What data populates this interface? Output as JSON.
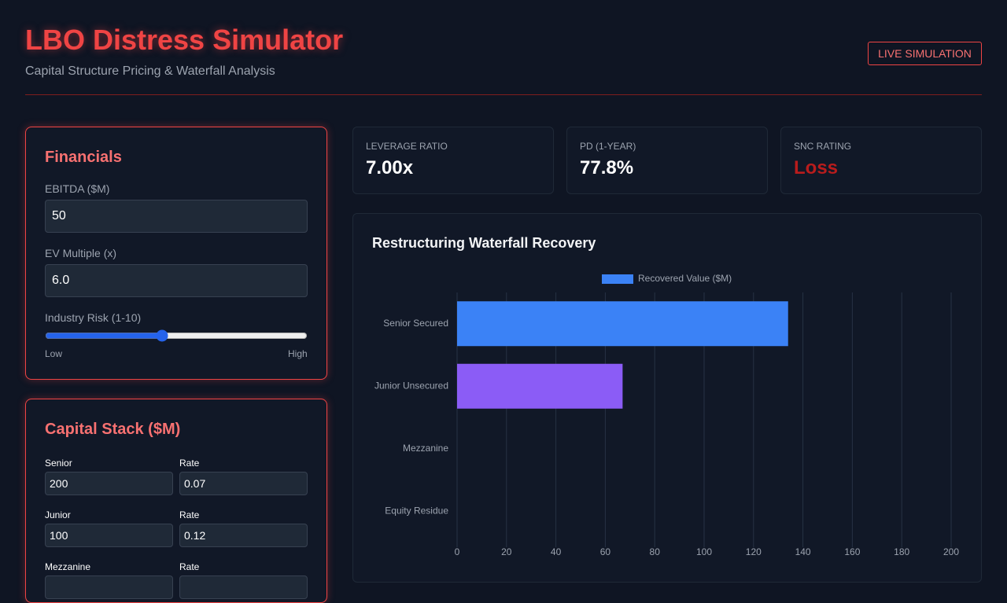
{
  "header": {
    "title": "LBO Distress Simulator",
    "subtitle": "Capital Structure Pricing & Waterfall Analysis",
    "badge": "LIVE SIMULATION"
  },
  "financials": {
    "title": "Financials",
    "fields": [
      {
        "label": "EBITDA ($M)",
        "value": "50"
      },
      {
        "label": "EV Multiple (x)",
        "value": "6.0"
      }
    ],
    "industry_risk": {
      "label": "Industry Risk (1-10)",
      "min": 1,
      "max": 10,
      "value": 5,
      "low": "Low",
      "high": "High"
    }
  },
  "capital_stack": {
    "title": "Capital Stack ($M)",
    "rows": [
      [
        {
          "label": "Senior",
          "value": "200"
        },
        {
          "label": "Rate",
          "value": "0.07"
        }
      ],
      [
        {
          "label": "Junior",
          "value": "100"
        },
        {
          "label": "Rate",
          "value": "0.12"
        }
      ],
      [
        {
          "label": "Mezzanine"
        },
        {
          "label": "Rate"
        }
      ]
    ]
  },
  "kpis": [
    {
      "label": "LEVERAGE RATIO",
      "value": "7.00x"
    },
    {
      "label": "PD (1-YEAR)",
      "value": "77.8%"
    },
    {
      "label": "SNC RATING",
      "value": "Loss",
      "color": "#b91c1c"
    }
  ],
  "chart_data": {
    "type": "hbar",
    "title": "Restructuring Waterfall Recovery",
    "categories": [
      "Senior Secured",
      "Junior Unsecured",
      "Mezzanine",
      "Equity Residue"
    ],
    "series": [
      {
        "name": "Recovered Value ($M)",
        "color": "#3b82f6",
        "values": [
          134,
          67,
          0,
          0
        ],
        "colors": [
          "#3b82f6",
          "#8b5cf6",
          "#f59e0b",
          "#10b981"
        ]
      }
    ],
    "xlim": [
      0,
      200
    ],
    "xticks": [
      0,
      20,
      40,
      60,
      80,
      100,
      120,
      140,
      160,
      180,
      200
    ],
    "grid": true
  }
}
